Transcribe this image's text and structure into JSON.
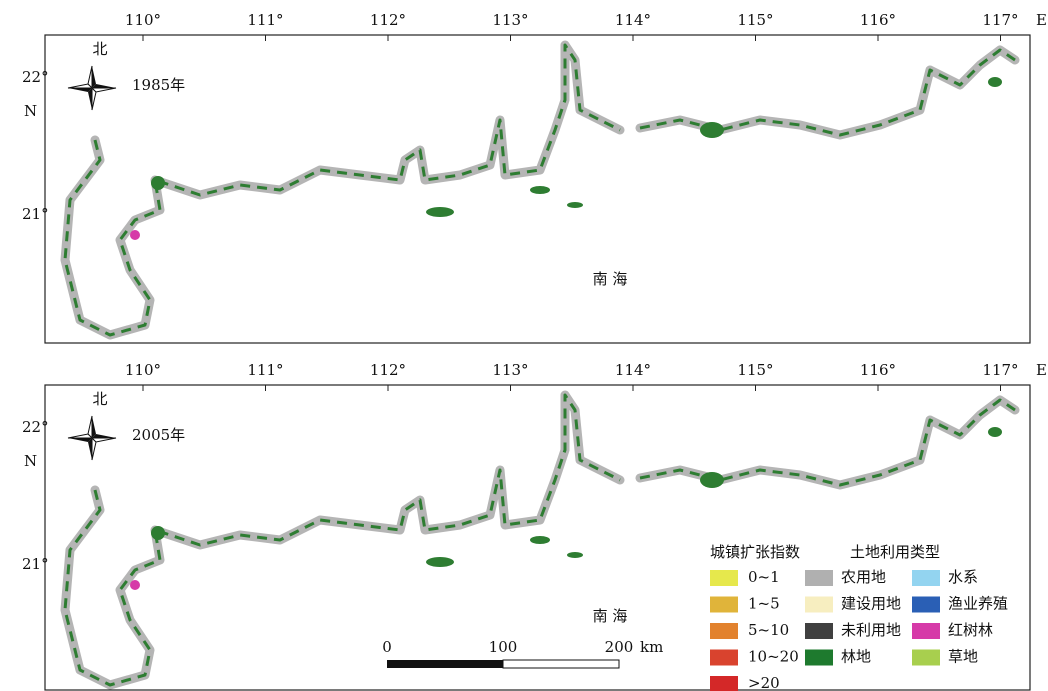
{
  "panels": [
    {
      "year": "1985年",
      "north": "北",
      "sea": "南 海",
      "lon_labels": [
        "110°",
        "111°",
        "112°",
        "113°",
        "114°",
        "115°",
        "116°",
        "117°"
      ],
      "lon_unit": "E",
      "lat_labels": [
        "22°",
        "21°"
      ],
      "lat_unit": "N"
    },
    {
      "year": "2005年",
      "north": "北",
      "sea": "南 海",
      "lon_labels": [
        "110°",
        "111°",
        "112°",
        "113°",
        "114°",
        "115°",
        "116°",
        "117°"
      ],
      "lon_unit": "E",
      "lat_labels": [
        "22°",
        "21°"
      ],
      "lat_unit": "N"
    }
  ],
  "legend": {
    "expansion": {
      "title": "城镇扩张指数",
      "items": [
        {
          "label": "0~1",
          "color": "#e6e84c"
        },
        {
          "label": "1~5",
          "color": "#e0b43a"
        },
        {
          "label": "5~10",
          "color": "#e2822e"
        },
        {
          "label": "10~20",
          "color": "#d9432e"
        },
        {
          "label": ">20",
          "color": "#d42828"
        }
      ]
    },
    "landuse": {
      "title": "土地利用类型",
      "items": [
        {
          "label": "农用地",
          "color": "#b0b0b0"
        },
        {
          "label": "建设用地",
          "color": "#f7eec0"
        },
        {
          "label": "未利用地",
          "color": "#404040"
        },
        {
          "label": "林地",
          "color": "#1e7a2e"
        },
        {
          "label": "水系",
          "color": "#93d4f0"
        },
        {
          "label": "渔业养殖",
          "color": "#2a5fb5"
        },
        {
          "label": "红树林",
          "color": "#d63aa8"
        },
        {
          "label": "草地",
          "color": "#a8cf4e"
        }
      ]
    }
  },
  "scale_bar": {
    "labels": [
      "0",
      "100",
      "200"
    ],
    "unit": "km"
  }
}
